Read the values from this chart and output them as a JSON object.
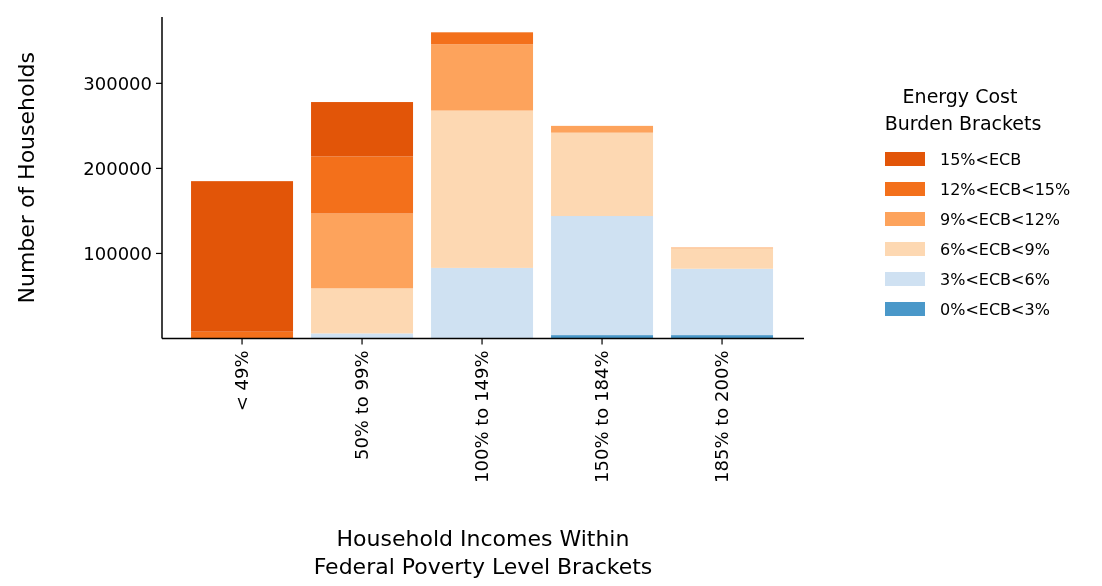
{
  "chart_data": {
    "type": "bar",
    "stacked": true,
    "xlabel": "Household Incomes Within\nFederal Poverty Level Brackets",
    "ylabel": "Number of Households",
    "legend_title": "Energy Cost\n Burden Brackets",
    "legend": "right",
    "grid": false,
    "categories": [
      "< 49%",
      "50% to 99%",
      "100% to 149%",
      "150% to 184%",
      "185% to 200%"
    ],
    "ylim": [
      0,
      378000
    ],
    "yticks": [
      100000,
      200000,
      300000
    ],
    "series": [
      {
        "name": "0%<ECB<3%",
        "color": "#4a98c9",
        "values": [
          0,
          0,
          0,
          4000,
          4000
        ]
      },
      {
        "name": "3%<ECB<6%",
        "color": "#cfe1f2",
        "values": [
          0,
          6000,
          83000,
          140000,
          78000
        ]
      },
      {
        "name": "6%<ECB<9%",
        "color": "#fdd8b2",
        "values": [
          0,
          53000,
          185000,
          98000,
          24000
        ]
      },
      {
        "name": "9%<ECB<12%",
        "color": "#fda35c",
        "values": [
          0,
          88000,
          78000,
          8000,
          1000
        ]
      },
      {
        "name": "12%<ECB<15%",
        "color": "#f3701b",
        "values": [
          8000,
          67000,
          14000,
          0,
          0
        ]
      },
      {
        "name": "15%<ECB",
        "color": "#e25508",
        "values": [
          177000,
          64000,
          0,
          0,
          0
        ]
      }
    ]
  }
}
